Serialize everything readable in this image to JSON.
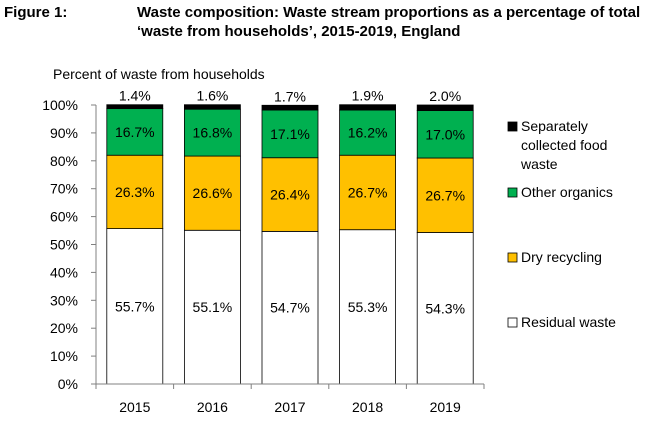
{
  "figure": {
    "label": "Figure 1:",
    "title": "Waste composition:  Waste stream proportions as a percentage of total ‘waste from households’, 2015-2019,  England"
  },
  "chart_data": {
    "type": "bar",
    "stacked": true,
    "ylabel": "Percent of waste from households",
    "xlabel": "",
    "ylim": [
      0,
      100
    ],
    "yticks": [
      "0%",
      "10%",
      "20%",
      "30%",
      "40%",
      "50%",
      "60%",
      "70%",
      "80%",
      "90%",
      "100%"
    ],
    "categories": [
      "2015",
      "2016",
      "2017",
      "2018",
      "2019"
    ],
    "series": [
      {
        "name": "Residual waste",
        "color": "#ffffff",
        "values": [
          55.7,
          55.1,
          54.7,
          55.3,
          54.3
        ],
        "labels": [
          "55.7%",
          "55.1%",
          "54.7%",
          "55.3%",
          "54.3%"
        ]
      },
      {
        "name": "Dry recycling",
        "color": "#ffc000",
        "values": [
          26.3,
          26.6,
          26.4,
          26.7,
          26.7
        ],
        "labels": [
          "26.3%",
          "26.6%",
          "26.4%",
          "26.7%",
          "26.7%"
        ]
      },
      {
        "name": "Other organics",
        "color": "#00b050",
        "values": [
          16.7,
          16.8,
          17.1,
          16.2,
          17.0
        ],
        "labels": [
          "16.7%",
          "16.8%",
          "17.1%",
          "16.2%",
          "17.0%"
        ]
      },
      {
        "name": "Separately collected food waste",
        "color": "#000000",
        "values": [
          1.4,
          1.6,
          1.7,
          1.9,
          2.0
        ],
        "labels": [
          "1.4%",
          "1.6%",
          "1.7%",
          "1.9%",
          "2.0%"
        ]
      }
    ],
    "legend": {
      "placement": "right",
      "items": [
        {
          "series": 3,
          "lines": [
            "Separately",
            "collected food",
            "waste"
          ]
        },
        {
          "series": 2,
          "lines": [
            "Other organics"
          ]
        },
        {
          "series": 1,
          "lines": [
            "Dry recycling"
          ]
        },
        {
          "series": 0,
          "lines": [
            "Residual waste"
          ]
        }
      ]
    },
    "grid": false
  }
}
